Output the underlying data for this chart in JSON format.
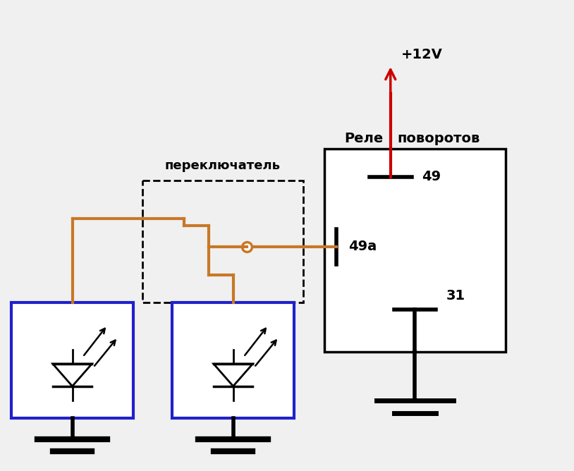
{
  "background_color": "#f0f0f0",
  "wire_color": "#c87828",
  "led_box_color": "#2020cc",
  "arrow_color": "#cc0000",
  "text_color": "#000000",
  "relay_label_left": "Реле",
  "relay_label_right": "поворотов",
  "switch_label": "переключатель",
  "pin49_label": "49",
  "pin49a_label": "49а",
  "pin31_label": "31",
  "voltage_label": "+12V"
}
